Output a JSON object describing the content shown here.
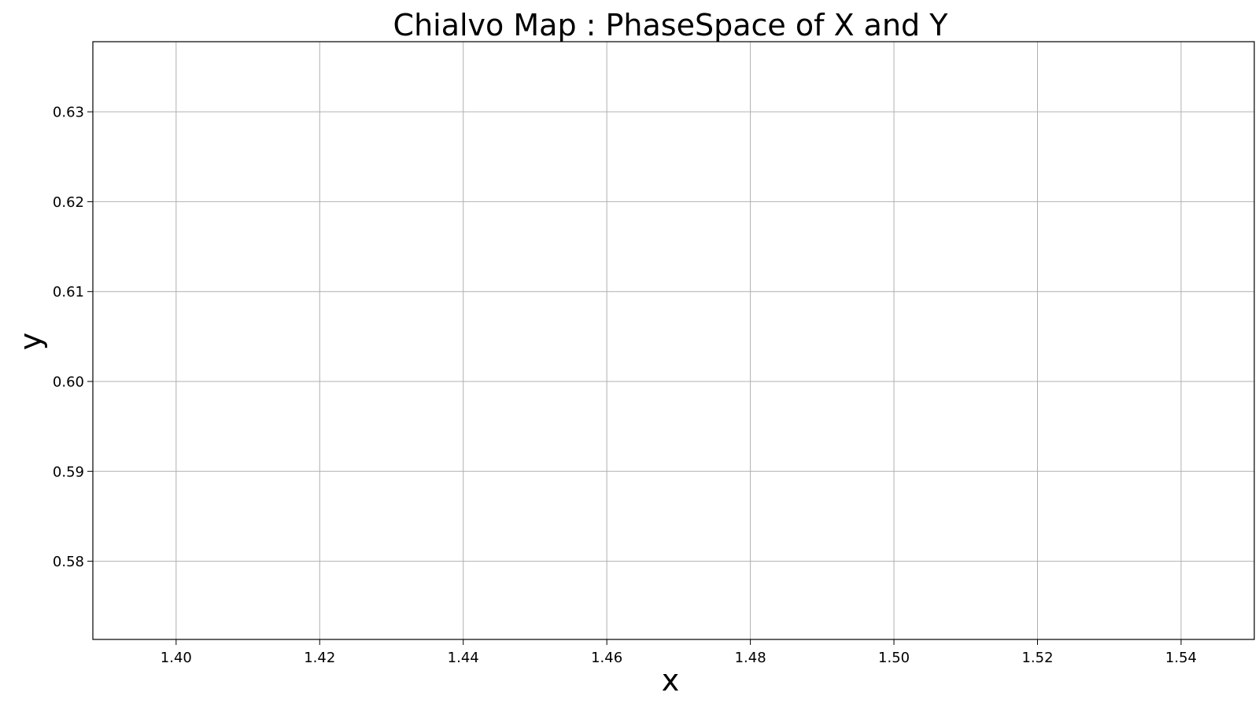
{
  "chart_data": {
    "type": "scatter",
    "title": "Chialvo Map : PhaseSpace of X and Y",
    "xlabel": "x",
    "ylabel": "y",
    "xlim": [
      1.3884,
      1.5502
    ],
    "ylim": [
      0.5713,
      0.6378
    ],
    "xticks": [
      1.4,
      1.42,
      1.44,
      1.46,
      1.48,
      1.5,
      1.52,
      1.54
    ],
    "xtick_labels": [
      "1.40",
      "1.42",
      "1.44",
      "1.46",
      "1.48",
      "1.50",
      "1.52",
      "1.54"
    ],
    "yticks": [
      0.58,
      0.59,
      0.6,
      0.61,
      0.62,
      0.63
    ],
    "ytick_labels": [
      "0.58",
      "0.59",
      "0.60",
      "0.61",
      "0.62",
      "0.63"
    ],
    "grid": true,
    "series": [
      {
        "x": [],
        "y": []
      }
    ]
  },
  "colors": {
    "grid": "#b0b0b0",
    "axes": "#000000",
    "background": "#ffffff"
  }
}
